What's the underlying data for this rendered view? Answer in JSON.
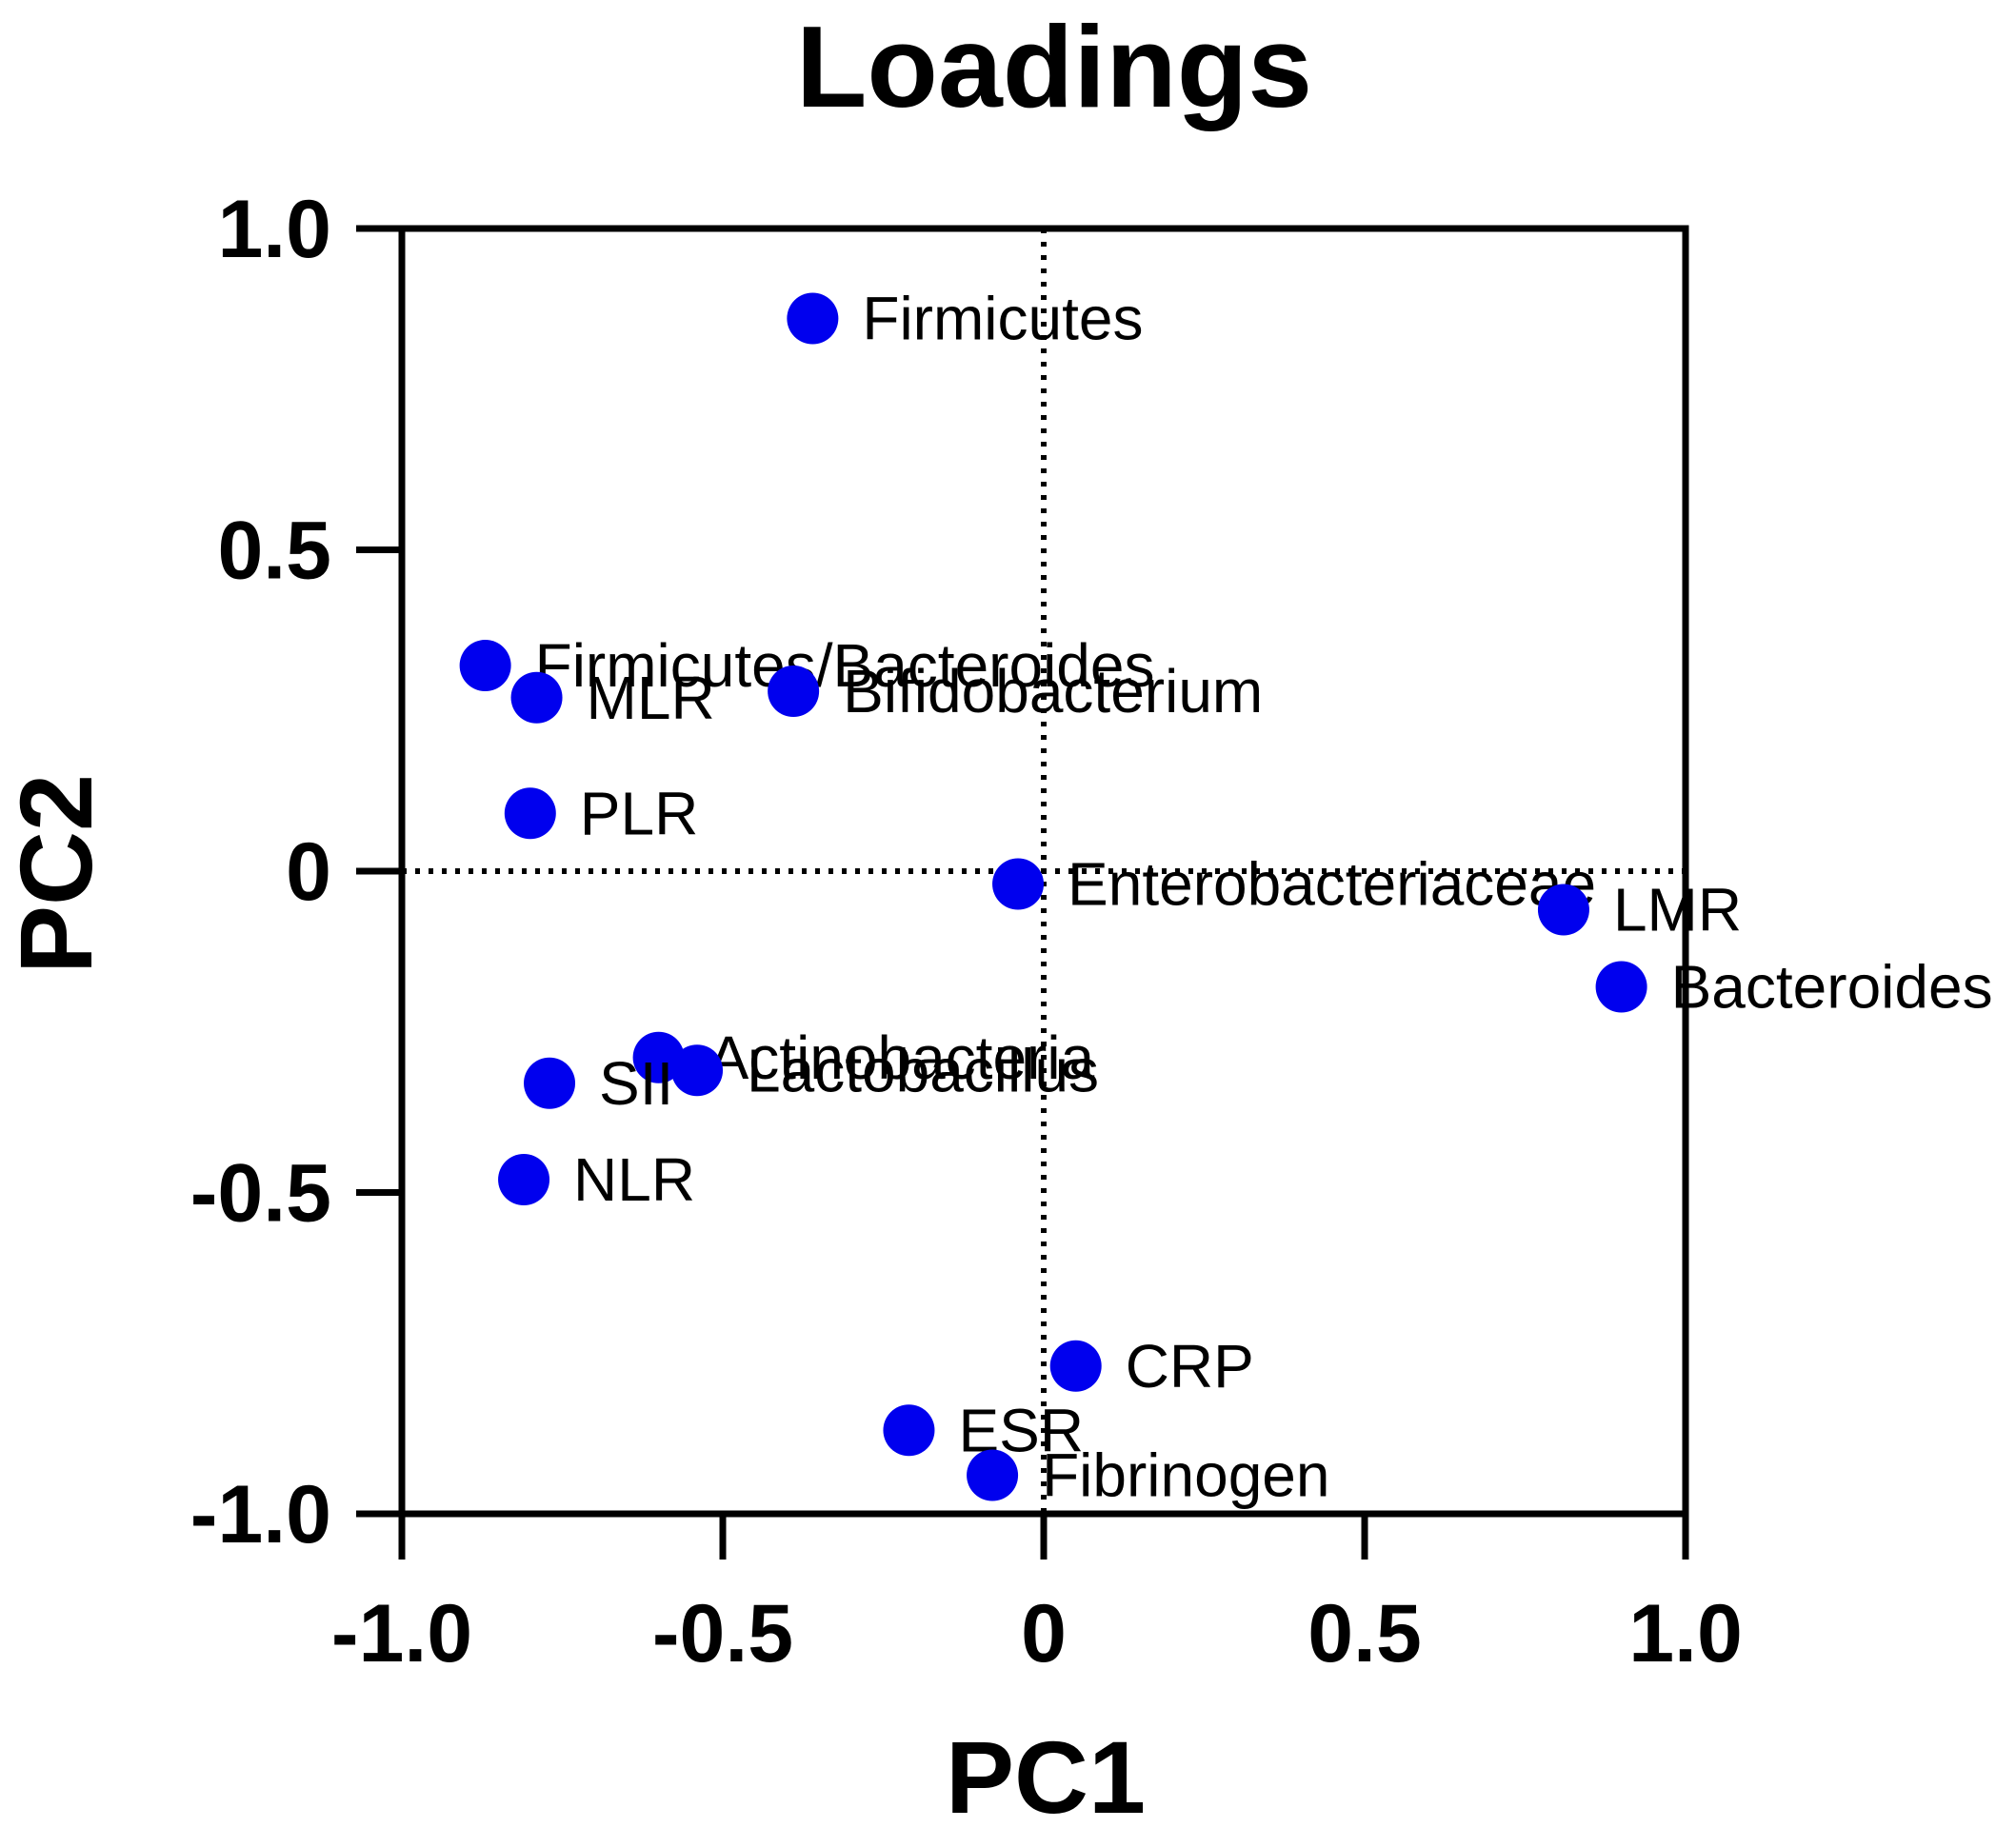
{
  "chart_data": {
    "type": "scatter",
    "title": "Loadings",
    "xlabel": "PC1",
    "ylabel": "PC2",
    "xlim": [
      -1.0,
      1.0
    ],
    "ylim": [
      -1.0,
      1.0
    ],
    "xticks": [
      "-1.0",
      "-0.5",
      "0",
      "0.5",
      "1.0"
    ],
    "yticks": [
      "-1.0",
      "-0.5",
      "0",
      "0.5",
      "1.0"
    ],
    "xtick_values": [
      -1.0,
      -0.5,
      0,
      0.5,
      1.0
    ],
    "ytick_values": [
      -1.0,
      -0.5,
      0,
      0.5,
      1.0
    ],
    "grid": false,
    "reference_lines": "dotted lines at x = 0 and y = 0",
    "marker_color": "#0000ee",
    "points": [
      {
        "label": "Firmicutes",
        "x": -0.36,
        "y": 0.86
      },
      {
        "label": "Firmicutes/Bacteroides",
        "x": -0.87,
        "y": 0.32
      },
      {
        "label": "MLR",
        "x": -0.79,
        "y": 0.27
      },
      {
        "label": "Bifidobacterium",
        "x": -0.39,
        "y": 0.28
      },
      {
        "label": "PLR",
        "x": -0.8,
        "y": 0.09
      },
      {
        "label": "Enterobacteriaceae",
        "x": -0.04,
        "y": -0.02
      },
      {
        "label": "LMR",
        "x": 0.81,
        "y": -0.06
      },
      {
        "label": "Bacteroides",
        "x": 0.9,
        "y": -0.18
      },
      {
        "label": "Actinobacteria",
        "x": -0.6,
        "y": -0.29
      },
      {
        "label": "Lactobacillus",
        "x": -0.54,
        "y": -0.31
      },
      {
        "label": "SII",
        "x": -0.77,
        "y": -0.33
      },
      {
        "label": "NLR",
        "x": -0.81,
        "y": -0.48
      },
      {
        "label": "CRP",
        "x": 0.05,
        "y": -0.77
      },
      {
        "label": "ESR",
        "x": -0.21,
        "y": -0.87
      },
      {
        "label": "Fibrinogen",
        "x": -0.08,
        "y": -0.94
      }
    ]
  }
}
